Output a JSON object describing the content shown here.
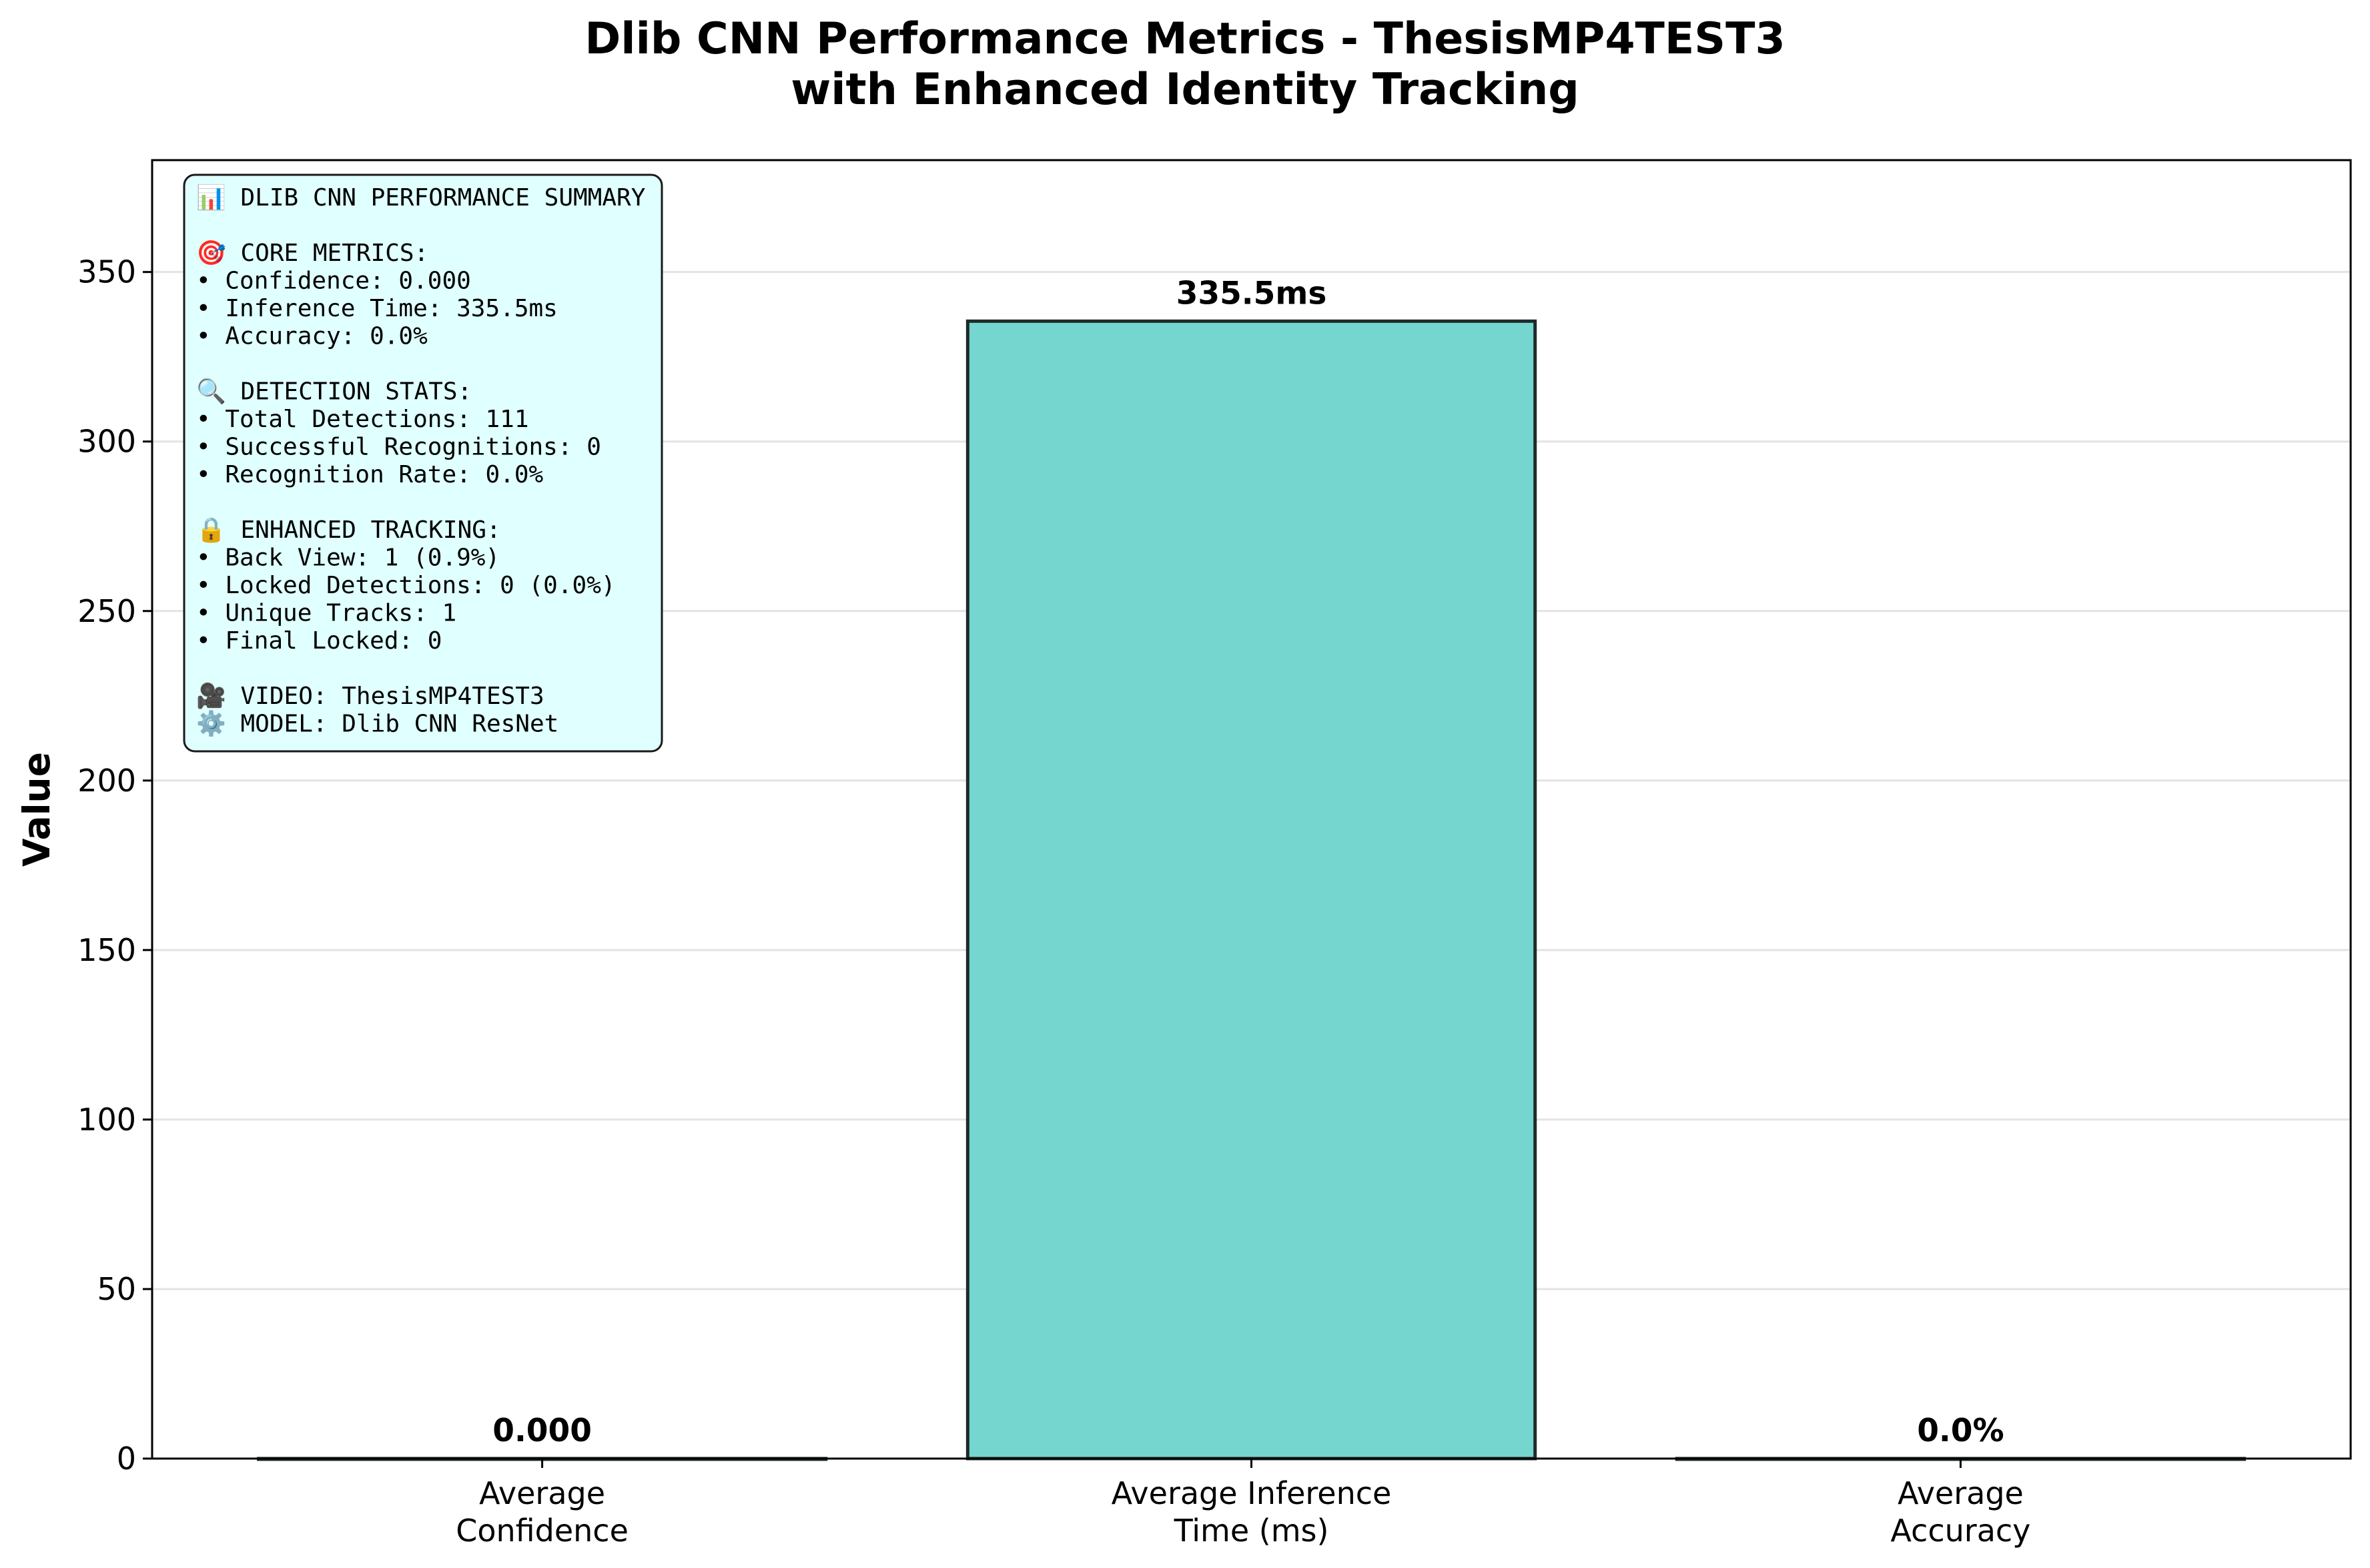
{
  "chart_data": {
    "type": "bar",
    "title": [
      "Dlib CNN Performance Metrics - ThesisMP4TEST3",
      "with Enhanced Identity Tracking"
    ],
    "ylabel": "Value",
    "categories": [
      [
        "Average",
        "Confidence"
      ],
      [
        "Average Inference",
        "Time (ms)"
      ],
      [
        "Average",
        "Accuracy"
      ]
    ],
    "values": [
      0.0,
      335.5,
      0.0
    ],
    "value_labels": [
      "0.000",
      "335.5ms",
      "0.0%"
    ],
    "ylim": [
      0,
      383
    ],
    "yticks": [
      0,
      50,
      100,
      150,
      200,
      250,
      300,
      350
    ],
    "grid": "y",
    "colors": {
      "bar_fill": "#74d6ce",
      "bar_edge": "#1e2b2b",
      "grid": "#e3e3e3",
      "summary_fill": "#e0ffff",
      "summary_edge": "#1a1a1a"
    }
  },
  "summary_box": {
    "lines": [
      "📊 DLIB CNN PERFORMANCE SUMMARY",
      "",
      "🎯 CORE METRICS:",
      "• Confidence: 0.000",
      "• Inference Time: 335.5ms",
      "• Accuracy: 0.0%",
      "",
      "🔍 DETECTION STATS:",
      "• Total Detections: 111",
      "• Successful Recognitions: 0",
      "• Recognition Rate: 0.0%",
      "",
      "🔒 ENHANCED TRACKING:",
      "• Back View: 1 (0.9%)",
      "• Locked Detections: 0 (0.0%)",
      "• Unique Tracks: 1",
      "• Final Locked: 0",
      "",
      "🎥 VIDEO: ThesisMP4TEST3",
      "⚙️  MODEL: Dlib CNN ResNet"
    ]
  }
}
